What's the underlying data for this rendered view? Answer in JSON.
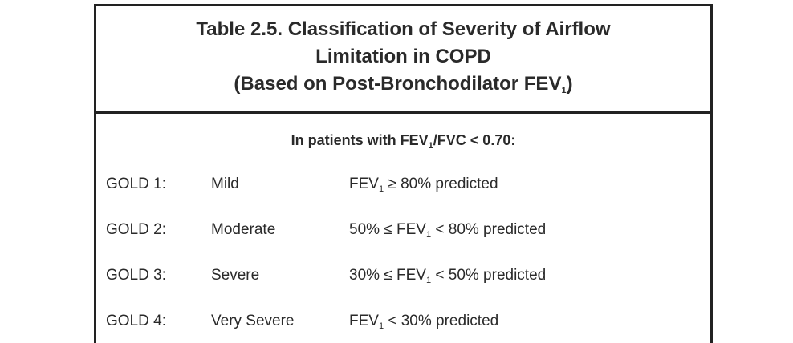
{
  "title": [
    [
      {
        "text": "Table 2.5.  Classification of Severity of Airflow"
      }
    ],
    [
      {
        "text": "Limitation in COPD"
      }
    ],
    [
      {
        "text": "(Based on Post-Bronchodilator FEV"
      },
      {
        "sub": "1"
      },
      {
        "text": ")"
      }
    ]
  ],
  "subheader": [
    {
      "text": "In patients with FEV"
    },
    {
      "sub": "1"
    },
    {
      "text": "/FVC < 0.70:"
    }
  ],
  "rows": [
    {
      "grade": "GOLD 1:",
      "severity": "Mild",
      "criterion": [
        {
          "text": "FEV"
        },
        {
          "sub": "1"
        },
        {
          "text": " ≥ 80% predicted"
        }
      ]
    },
    {
      "grade": "GOLD 2:",
      "severity": "Moderate",
      "criterion": [
        {
          "text": "50% ≤ FEV"
        },
        {
          "sub": "1"
        },
        {
          "text": " < 80% predicted"
        }
      ]
    },
    {
      "grade": "GOLD 3:",
      "severity": "Severe",
      "criterion": [
        {
          "text": "30% ≤ FEV"
        },
        {
          "sub": "1"
        },
        {
          "text": " < 50% predicted"
        }
      ]
    },
    {
      "grade": "GOLD 4:",
      "severity": "Very Severe",
      "criterion": [
        {
          "text": "FEV"
        },
        {
          "sub": "1"
        },
        {
          "text": " < 30% predicted"
        }
      ]
    }
  ]
}
